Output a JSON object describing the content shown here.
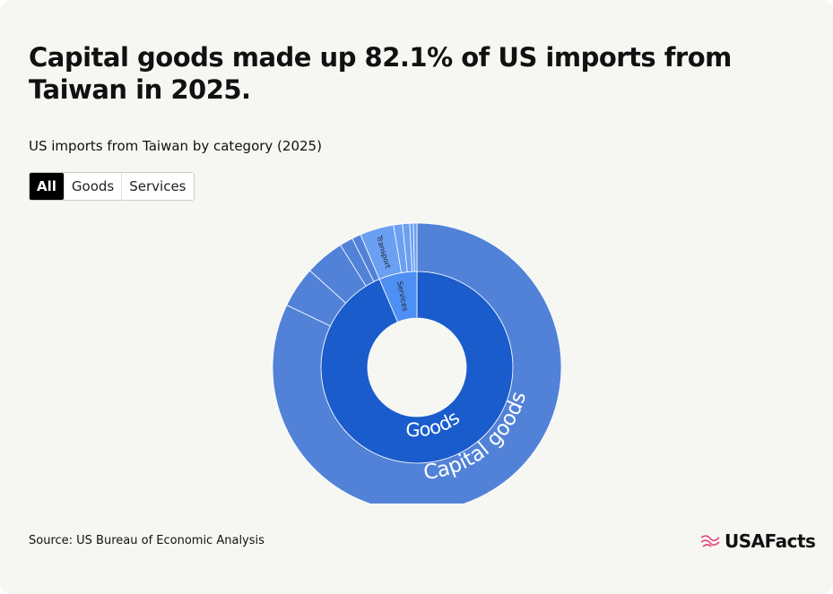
{
  "header": {
    "title": "Capital goods made up 82.1% of US imports from Taiwan in 2025.",
    "subtitle": "US imports from Taiwan by category (2025)"
  },
  "tabs": [
    "All",
    "Goods",
    "Services"
  ],
  "selected_tab": 0,
  "chart_data": {
    "type": "sunburst",
    "inner": {
      "categories": [
        "Goods",
        "Services"
      ],
      "values": [
        93.6,
        6.4
      ],
      "colors": [
        "#1a5ccc",
        "#4d8ff2"
      ]
    },
    "outer": {
      "categories": [
        "Capital goods",
        null,
        null,
        null,
        null,
        "Transport",
        null,
        null,
        null,
        null
      ],
      "parents": [
        0,
        0,
        0,
        0,
        0,
        1,
        1,
        1,
        1,
        1
      ],
      "values": [
        82.1,
        4.6,
        4.4,
        1.5,
        1.0,
        3.8,
        1.0,
        0.8,
        0.4,
        0.4
      ],
      "colors": [
        "#5282d8",
        "#5282d8",
        "#5282d8",
        "#5282d8",
        "#5282d8",
        "#6a9ff2",
        "#6a9ff2",
        "#6a9ff2",
        "#6a9ff2",
        "#6a9ff2"
      ]
    }
  },
  "footer": {
    "source": "Source: US Bureau of Economic Analysis",
    "logo": "USAFacts"
  }
}
